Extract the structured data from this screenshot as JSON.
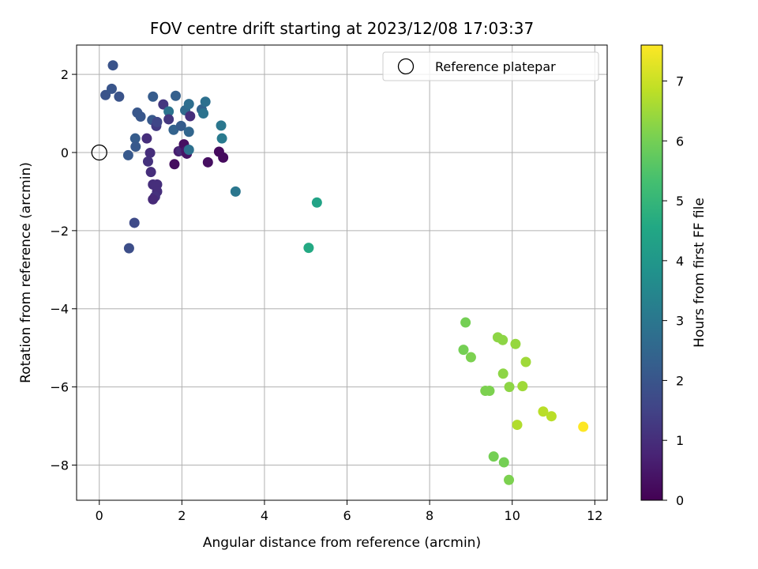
{
  "chart_data": {
    "type": "scatter",
    "title": "FOV centre drift starting at 2023/12/08 17:03:37",
    "xlabel": "Angular distance from reference (arcmin)",
    "ylabel": "Rotation from reference (arcmin)",
    "xlim": [
      -0.55,
      12.3
    ],
    "ylim": [
      -8.9,
      2.75
    ],
    "xticks": [
      0,
      2,
      4,
      6,
      8,
      10,
      12
    ],
    "yticks": [
      2,
      0,
      -2,
      -4,
      -6,
      -8
    ],
    "grid": true,
    "colormap": "viridis",
    "colorbar": {
      "label": "Hours from first FF file",
      "lim": [
        0,
        7.6
      ],
      "ticks": [
        0,
        1,
        2,
        3,
        4,
        5,
        6,
        7
      ]
    },
    "legend": {
      "position": "upper right",
      "entries": [
        "Reference platepar"
      ]
    },
    "reference_point": {
      "x": 0,
      "y": 0
    },
    "points": [
      {
        "x": 0.33,
        "y": 2.23,
        "h": 1.95
      },
      {
        "x": 0.15,
        "y": 1.47,
        "h": 1.95
      },
      {
        "x": 0.3,
        "y": 1.63,
        "h": 2.0
      },
      {
        "x": 0.48,
        "y": 1.43,
        "h": 1.95
      },
      {
        "x": 0.92,
        "y": 1.02,
        "h": 2.05
      },
      {
        "x": 1.0,
        "y": 0.92,
        "h": 2.05
      },
      {
        "x": 1.3,
        "y": 1.43,
        "h": 2.2
      },
      {
        "x": 1.55,
        "y": 1.23,
        "h": 1.2
      },
      {
        "x": 1.68,
        "y": 1.05,
        "h": 2.9
      },
      {
        "x": 1.85,
        "y": 1.45,
        "h": 2.3
      },
      {
        "x": 2.08,
        "y": 1.08,
        "h": 2.6
      },
      {
        "x": 2.17,
        "y": 1.24,
        "h": 2.75
      },
      {
        "x": 2.48,
        "y": 1.1,
        "h": 2.4
      },
      {
        "x": 2.57,
        "y": 1.3,
        "h": 2.8
      },
      {
        "x": 2.52,
        "y": 1.0,
        "h": 2.9
      },
      {
        "x": 1.28,
        "y": 0.83,
        "h": 2.1
      },
      {
        "x": 1.38,
        "y": 0.68,
        "h": 1.3
      },
      {
        "x": 1.4,
        "y": 0.78,
        "h": 1.6
      },
      {
        "x": 1.68,
        "y": 0.85,
        "h": 1.2
      },
      {
        "x": 1.8,
        "y": 0.58,
        "h": 2.4
      },
      {
        "x": 1.98,
        "y": 0.68,
        "h": 2.2
      },
      {
        "x": 2.2,
        "y": 0.93,
        "h": 1.0
      },
      {
        "x": 2.17,
        "y": 0.53,
        "h": 2.5
      },
      {
        "x": 2.95,
        "y": 0.69,
        "h": 3.0
      },
      {
        "x": 2.97,
        "y": 0.36,
        "h": 3.1
      },
      {
        "x": 0.87,
        "y": 0.36,
        "h": 2.2
      },
      {
        "x": 0.88,
        "y": 0.15,
        "h": 2.1
      },
      {
        "x": 1.15,
        "y": 0.36,
        "h": 1.0
      },
      {
        "x": 0.7,
        "y": -0.07,
        "h": 2.1
      },
      {
        "x": 1.23,
        "y": -0.01,
        "h": 1.0
      },
      {
        "x": 1.92,
        "y": 0.03,
        "h": 0.6
      },
      {
        "x": 1.98,
        "y": 0.05,
        "h": 0.9
      },
      {
        "x": 2.05,
        "y": 0.21,
        "h": 0.3
      },
      {
        "x": 2.1,
        "y": 0.04,
        "h": 0.5
      },
      {
        "x": 2.12,
        "y": -0.03,
        "h": 0.4
      },
      {
        "x": 2.17,
        "y": 0.07,
        "h": 2.8
      },
      {
        "x": 2.9,
        "y": 0.02,
        "h": 0.2
      },
      {
        "x": 3.0,
        "y": -0.13,
        "h": 0.2
      },
      {
        "x": 1.18,
        "y": -0.23,
        "h": 1.1
      },
      {
        "x": 1.82,
        "y": -0.3,
        "h": 0.25
      },
      {
        "x": 2.63,
        "y": -0.25,
        "h": 0.3
      },
      {
        "x": 1.25,
        "y": -0.5,
        "h": 1.0
      },
      {
        "x": 1.3,
        "y": -0.82,
        "h": 1.0
      },
      {
        "x": 1.4,
        "y": -0.82,
        "h": 1.0
      },
      {
        "x": 1.4,
        "y": -1.0,
        "h": 1.0
      },
      {
        "x": 1.35,
        "y": -1.13,
        "h": 1.1
      },
      {
        "x": 1.3,
        "y": -1.2,
        "h": 0.9
      },
      {
        "x": 0.85,
        "y": -1.8,
        "h": 1.7
      },
      {
        "x": 0.72,
        "y": -2.45,
        "h": 1.8
      },
      {
        "x": 3.3,
        "y": -1.0,
        "h": 3.0
      },
      {
        "x": 5.27,
        "y": -1.28,
        "h": 4.4
      },
      {
        "x": 5.07,
        "y": -2.44,
        "h": 4.6
      },
      {
        "x": 8.87,
        "y": -4.35,
        "h": 6.0
      },
      {
        "x": 8.82,
        "y": -5.05,
        "h": 6.0
      },
      {
        "x": 9.0,
        "y": -5.24,
        "h": 6.1
      },
      {
        "x": 9.65,
        "y": -4.73,
        "h": 6.3
      },
      {
        "x": 9.77,
        "y": -4.8,
        "h": 6.3
      },
      {
        "x": 10.08,
        "y": -4.9,
        "h": 6.4
      },
      {
        "x": 10.33,
        "y": -5.36,
        "h": 6.5
      },
      {
        "x": 9.78,
        "y": -5.66,
        "h": 6.3
      },
      {
        "x": 9.35,
        "y": -6.1,
        "h": 6.1
      },
      {
        "x": 9.45,
        "y": -6.1,
        "h": 6.1
      },
      {
        "x": 9.93,
        "y": -6.0,
        "h": 6.3
      },
      {
        "x": 10.25,
        "y": -5.98,
        "h": 6.5
      },
      {
        "x": 10.12,
        "y": -6.97,
        "h": 6.7
      },
      {
        "x": 10.75,
        "y": -6.63,
        "h": 6.8
      },
      {
        "x": 10.95,
        "y": -6.75,
        "h": 6.8
      },
      {
        "x": 9.55,
        "y": -7.78,
        "h": 6.0
      },
      {
        "x": 9.8,
        "y": -7.93,
        "h": 6.0
      },
      {
        "x": 9.92,
        "y": -8.38,
        "h": 6.1
      },
      {
        "x": 11.72,
        "y": -7.02,
        "h": 7.6
      }
    ]
  }
}
